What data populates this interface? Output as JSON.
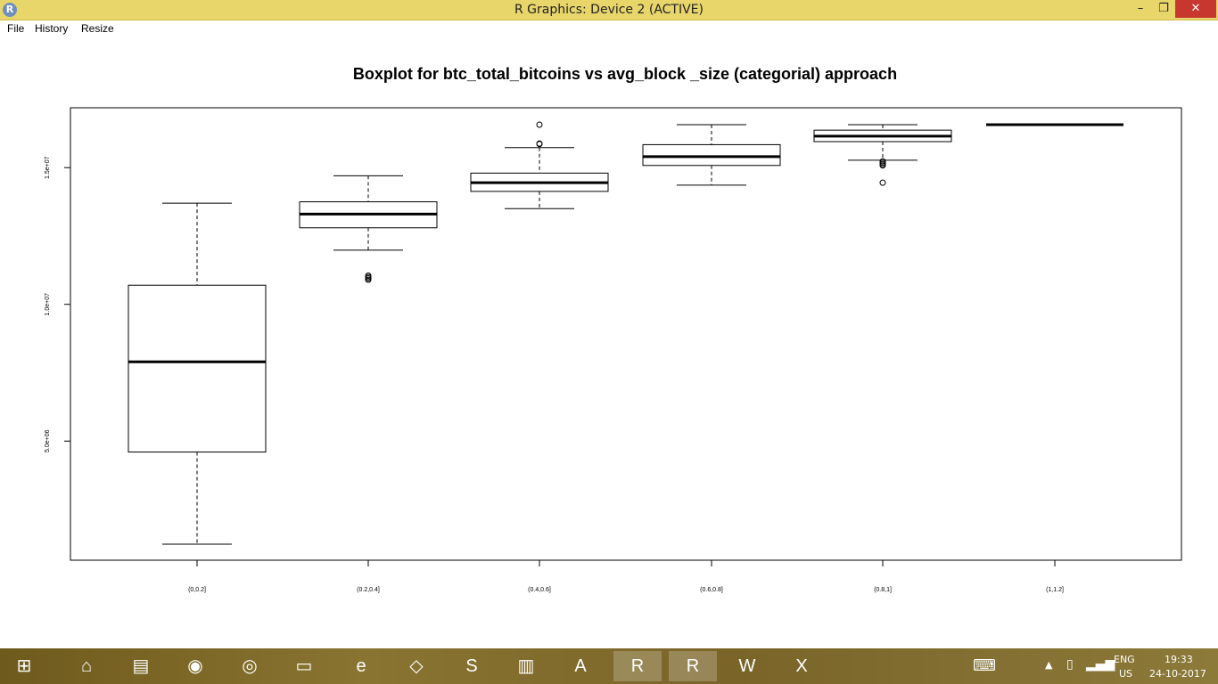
{
  "window": {
    "title": "R Graphics: Device 2 (ACTIVE)",
    "controls": {
      "minimize": "–",
      "maximize": "❐",
      "close": "✕"
    }
  },
  "menu": {
    "items": [
      "File",
      "History",
      "Resize"
    ]
  },
  "chart_data": {
    "type": "boxplot",
    "title": "Boxplot for btc_total_bitcoins vs avg_block _size (categorial) approach",
    "xlabel": "",
    "ylabel": "",
    "ylim": [
      0,
      16700000
    ],
    "yticks": [
      5000000,
      10000000,
      15000000
    ],
    "ytick_labels": [
      "5.0e+06",
      "1.0e+07",
      "1.5e+07"
    ],
    "categories": [
      "(0,0.2]",
      "(0.2,0.4]",
      "(0.4,0.6]",
      "(0.6,0.8]",
      "(0.8,1]",
      "(1,1.2]"
    ],
    "boxes": [
      {
        "whisker_low": 1230000,
        "q1": 4600000,
        "median": 7900000,
        "q3": 10700000,
        "whisker_high": 13700000,
        "outliers": []
      },
      {
        "whisker_low": 11980000,
        "q1": 12800000,
        "median": 13300000,
        "q3": 13750000,
        "whisker_high": 14700000,
        "outliers": [
          10900000,
          10950000,
          11000000,
          11050000
        ]
      },
      {
        "whisker_low": 13500000,
        "q1": 14130000,
        "median": 14450000,
        "q3": 14800000,
        "whisker_high": 15730000,
        "outliers": [
          15860000,
          15880000,
          16570000
        ]
      },
      {
        "whisker_low": 14360000,
        "q1": 15080000,
        "median": 15400000,
        "q3": 15840000,
        "whisker_high": 16570000,
        "outliers": []
      },
      {
        "whisker_low": 15270000,
        "q1": 15950000,
        "median": 16150000,
        "q3": 16370000,
        "whisker_high": 16570000,
        "outliers": [
          14450000,
          15080000,
          15130000,
          15180000,
          15230000
        ]
      },
      {
        "whisker_low": 16570000,
        "q1": 16570000,
        "median": 16570000,
        "q3": 16570000,
        "whisker_high": 16570000,
        "outliers": []
      }
    ]
  },
  "taskbar": {
    "apps": [
      {
        "name": "Start",
        "glyph": "⊞"
      },
      {
        "name": "Home",
        "glyph": "⌂"
      },
      {
        "name": "Notes",
        "glyph": "▤"
      },
      {
        "name": "Firefox",
        "glyph": "◉"
      },
      {
        "name": "Chrome",
        "glyph": "◎"
      },
      {
        "name": "Explorer",
        "glyph": "▭"
      },
      {
        "name": "Internet Explorer",
        "glyph": "e"
      },
      {
        "name": "Files",
        "glyph": "◇"
      },
      {
        "name": "Skype",
        "glyph": "S"
      },
      {
        "name": "Charts",
        "glyph": "▥"
      },
      {
        "name": "Acrobat",
        "glyph": "A"
      },
      {
        "name": "R",
        "glyph": "R"
      },
      {
        "name": "RStudio",
        "glyph": "R"
      },
      {
        "name": "Word",
        "glyph": "W"
      },
      {
        "name": "Excel",
        "glyph": "X"
      }
    ],
    "tray": {
      "language": "ENG",
      "region": "US",
      "time": "19:33",
      "date": "24-10-2017"
    }
  },
  "colors": {
    "titlebar": "#e8d66b",
    "close_button": "#c7372f",
    "plot_stroke": "#000000"
  }
}
